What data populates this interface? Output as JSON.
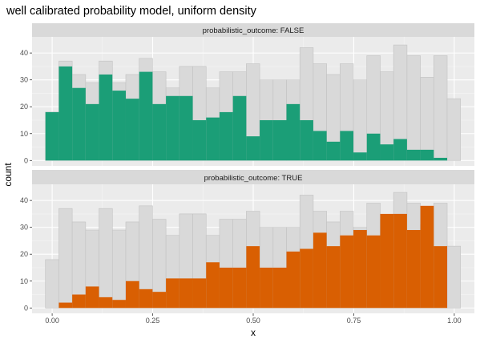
{
  "chart_data": {
    "type": "bar",
    "title": "well calibrated probability model, uniform density",
    "xlabel": "x",
    "ylabel": "count",
    "xlim": [
      -0.05,
      1.05
    ],
    "ylim": [
      -2,
      46
    ],
    "x_ticks": [
      "0.00",
      "0.25",
      "0.50",
      "0.75",
      "1.00"
    ],
    "y_ticks": [
      "0",
      "10",
      "20",
      "30",
      "40"
    ],
    "bin_width": 0.0333,
    "bin_start": -0.0167,
    "background_counts": [
      18,
      37,
      32,
      29,
      37,
      29,
      32,
      38,
      33,
      27,
      35,
      35,
      27,
      33,
      33,
      36,
      30,
      30,
      30,
      42,
      36,
      32,
      36,
      30,
      39,
      33,
      43,
      39,
      31,
      39,
      23
    ],
    "grid": true,
    "colors": {
      "panel_bg": "#ebebeb",
      "strip_bg": "#d9d9d9",
      "background_fill": "#d9d9d9",
      "background_stroke": "#c2c2c2",
      "false_fill": "#1b9e77",
      "true_fill": "#d95f02"
    },
    "panels": [
      {
        "strip": "probabilistic_outcome: FALSE",
        "series": {
          "values": [
            18,
            35,
            27,
            21,
            32,
            26,
            23,
            33,
            21,
            24,
            24,
            15,
            16,
            18,
            24,
            9,
            15,
            15,
            21,
            15,
            11,
            7,
            11,
            3,
            10,
            6,
            8,
            4,
            4,
            1,
            0
          ]
        }
      },
      {
        "strip": "probabilistic_outcome: TRUE",
        "series": {
          "values": [
            0,
            2,
            5,
            8,
            4,
            3,
            10,
            7,
            6,
            11,
            11,
            11,
            17,
            15,
            15,
            23,
            15,
            15,
            21,
            22,
            28,
            23,
            27,
            29,
            27,
            35,
            35,
            29,
            38,
            23,
            0
          ]
        }
      }
    ]
  }
}
